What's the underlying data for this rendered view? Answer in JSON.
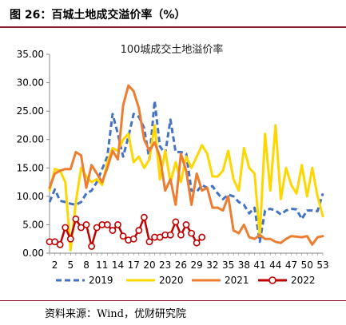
{
  "figure": {
    "title": "图 26：百城土地成交溢价率（%）",
    "source": "资料来源：Wind，优财研究院"
  },
  "chart_data": {
    "type": "line",
    "title": "100城成交土地溢价率",
    "xlabel": "",
    "ylabel": "",
    "ylim": [
      0,
      35
    ],
    "yticks": [
      "0.00",
      "5.00",
      "10.00",
      "15.00",
      "20.00",
      "25.00",
      "30.00",
      "35.00"
    ],
    "xticks": [
      2,
      5,
      8,
      11,
      14,
      17,
      20,
      23,
      26,
      29,
      32,
      35,
      38,
      41,
      44,
      47,
      50,
      53
    ],
    "grid": false,
    "legend": "bottom",
    "series": [
      {
        "name": "2019",
        "color": "#4472C4",
        "style": "dashed",
        "x": [
          1,
          2,
          3,
          4,
          5,
          6,
          7,
          8,
          9,
          10,
          11,
          12,
          13,
          14,
          15,
          16,
          17,
          18,
          19,
          20,
          21,
          22,
          23,
          24,
          25,
          26,
          27,
          28,
          29,
          30,
          31,
          32,
          33,
          34,
          35,
          36,
          37,
          38,
          39,
          40,
          41,
          42,
          43,
          44,
          45,
          46,
          47,
          48,
          49,
          50,
          51,
          52,
          53
        ],
        "values": [
          9.0,
          11.2,
          9.2,
          9.0,
          8.7,
          8.5,
          9.0,
          10.5,
          11.0,
          12.5,
          14.8,
          17.0,
          24.5,
          21.0,
          17.0,
          20.5,
          24.5,
          24.0,
          22.0,
          16.5,
          26.8,
          18.8,
          17.5,
          23.5,
          17.8,
          17.8,
          17.5,
          11.0,
          10.8,
          12.0,
          11.5,
          11.8,
          10.5,
          9.5,
          10.3,
          10.0,
          9.0,
          8.5,
          7.0,
          8.0,
          2.0,
          7.5,
          7.8,
          7.5,
          6.8,
          7.5,
          7.8,
          7.7,
          6.0,
          7.5,
          7.5,
          7.4,
          10.5
        ]
      },
      {
        "name": "2020",
        "color": "#FFD700",
        "style": "solid",
        "x": [
          1,
          2,
          3,
          4,
          5,
          6,
          7,
          8,
          9,
          10,
          11,
          12,
          13,
          14,
          15,
          16,
          17,
          18,
          19,
          20,
          21,
          22,
          23,
          24,
          25,
          26,
          27,
          28,
          29,
          30,
          31,
          32,
          33,
          34,
          35,
          36,
          37,
          38,
          39,
          40,
          41,
          42,
          43,
          44,
          45,
          46,
          47,
          48,
          49,
          50,
          51,
          52,
          53
        ],
        "values": [
          11.0,
          14.8,
          14.5,
          12.5,
          0.5,
          9.0,
          15.0,
          13.5,
          12.5,
          13.0,
          12.0,
          16.0,
          18.5,
          18.0,
          20.0,
          21.0,
          16.0,
          17.0,
          15.0,
          16.5,
          22.5,
          13.0,
          18.0,
          12.5,
          16.0,
          12.5,
          17.0,
          15.0,
          17.0,
          19.0,
          17.5,
          13.5,
          13.5,
          14.5,
          18.0,
          13.0,
          11.0,
          18.5,
          15.0,
          14.0,
          3.0,
          21.0,
          11.0,
          22.5,
          9.5,
          15.0,
          12.0,
          10.5,
          15.5,
          10.0,
          15.0,
          10.0,
          6.5
        ]
      },
      {
        "name": "2021",
        "color": "#ED7D31",
        "style": "solid",
        "x": [
          1,
          2,
          3,
          4,
          5,
          6,
          7,
          8,
          9,
          10,
          11,
          12,
          13,
          14,
          15,
          16,
          17,
          18,
          19,
          20,
          21,
          22,
          23,
          24,
          25,
          26,
          27,
          28,
          29,
          30,
          31,
          32,
          33,
          34,
          35,
          36,
          37,
          38,
          39,
          40,
          41,
          42,
          43,
          44,
          45,
          46,
          47,
          48,
          49,
          50,
          51,
          52,
          53
        ],
        "values": [
          11.5,
          14.0,
          14.5,
          14.8,
          14.8,
          17.8,
          17.2,
          11.5,
          15.5,
          14.0,
          12.5,
          15.0,
          18.0,
          16.5,
          26.0,
          29.5,
          28.5,
          25.5,
          20.0,
          18.0,
          19.5,
          17.0,
          11.0,
          13.0,
          8.5,
          17.5,
          14.5,
          8.5,
          14.0,
          11.0,
          11.5,
          8.0,
          8.0,
          7.5,
          10.0,
          4.0,
          3.5,
          5.0,
          2.8,
          2.5,
          3.2,
          2.5,
          2.5,
          2.0,
          1.8,
          2.5,
          3.0,
          2.9,
          2.8,
          3.0,
          1.5,
          2.8,
          3.0
        ]
      },
      {
        "name": "2022",
        "color": "#C00000",
        "style": "solid-markers",
        "x": [
          1,
          2,
          3,
          4,
          5,
          6,
          7,
          8,
          9,
          10,
          11,
          12,
          13,
          14,
          15,
          16,
          17,
          18,
          19,
          20,
          21,
          22,
          23,
          24,
          25,
          26,
          27,
          28,
          29,
          30
        ],
        "values": [
          2.0,
          2.0,
          1.5,
          4.5,
          2.5,
          6.0,
          4.5,
          5.0,
          1.2,
          4.5,
          5.0,
          5.0,
          4.0,
          5.0,
          3.0,
          2.3,
          2.5,
          4.0,
          6.3,
          2.0,
          2.8,
          2.8,
          3.2,
          3.2,
          5.5,
          3.2,
          5.0,
          3.5,
          1.8,
          2.8
        ]
      }
    ]
  }
}
